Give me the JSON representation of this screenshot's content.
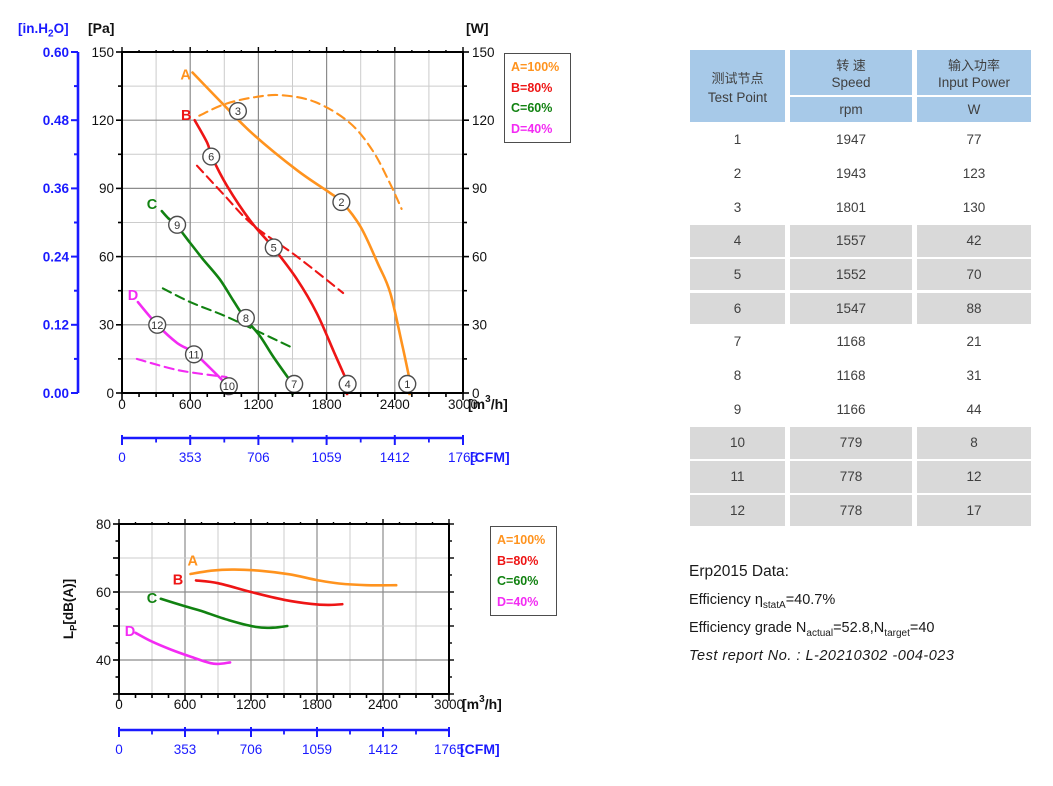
{
  "chart_data": [
    {
      "id": "performance",
      "type": "line",
      "title": "",
      "xlabel_parts": [
        "[m",
        "3",
        "/h]"
      ],
      "x_axis": {
        "min": 0,
        "max": 3000,
        "grid_step": 300,
        "tick_step": 150,
        "ticks": [
          "0",
          "600",
          "1200",
          "1800",
          "2400",
          "3000"
        ],
        "label_step": 600
      },
      "y_axis_pa": {
        "label": "[Pa]",
        "min": 0,
        "max": 150,
        "ticks": [
          "0",
          "30",
          "60",
          "90",
          "120",
          "150"
        ]
      },
      "y_axis_inh2o": {
        "label_parts": [
          "[in.H",
          "2",
          "O]"
        ],
        "ticks": [
          "0.00",
          "0.12",
          "0.24",
          "0.36",
          "0.48",
          "0.60"
        ]
      },
      "y_axis_w": {
        "label": "[W]",
        "min": 0,
        "max": 150,
        "ticks": [
          "0",
          "30",
          "60",
          "90",
          "120",
          "150"
        ]
      },
      "cfm_axis": {
        "label": "[CFM]",
        "min": 0,
        "max": 1765,
        "ticks": [
          "0",
          "353",
          "706",
          "1059",
          "1412",
          "1765"
        ]
      },
      "legend": [
        {
          "label": "A=100%",
          "color": "#ff931e"
        },
        {
          "label": "B=80%",
          "color": "#ee1515"
        },
        {
          "label": "C=60%",
          "color": "#118211"
        },
        {
          "label": "D=40%",
          "color": "#f32bf3"
        }
      ],
      "series": [
        {
          "name": "A",
          "kind": "pressure",
          "style": "solid",
          "color": "#ff931e",
          "label": {
            "text": "A",
            "x": 560,
            "y": 138
          },
          "points": [
            [
              620,
              141
            ],
            [
              890,
              127
            ],
            [
              1150,
              114
            ],
            [
              1540,
              98
            ],
            [
              1830,
              88
            ],
            [
              1935,
              84
            ],
            [
              2100,
              73
            ],
            [
              2250,
              57
            ],
            [
              2360,
              44
            ],
            [
              2470,
              20
            ],
            [
              2530,
              6
            ]
          ]
        },
        {
          "name": "A",
          "kind": "power",
          "style": "dashed",
          "color": "#ff931e",
          "points": [
            [
              680,
              122
            ],
            [
              900,
              127
            ],
            [
              1150,
              130
            ],
            [
              1400,
              131
            ],
            [
              1700,
              128
            ],
            [
              2000,
              119
            ],
            [
              2200,
              107
            ],
            [
              2350,
              93
            ],
            [
              2460,
              81
            ]
          ]
        },
        {
          "name": "B",
          "kind": "pressure",
          "style": "solid",
          "color": "#ee1515",
          "label": {
            "text": "B",
            "x": 565,
            "y": 120
          },
          "points": [
            [
              640,
              120
            ],
            [
              750,
              110
            ],
            [
              790,
              104
            ],
            [
              925,
              91
            ],
            [
              1125,
              76
            ],
            [
              1330,
              64
            ],
            [
              1540,
              50
            ],
            [
              1715,
              35
            ],
            [
              1865,
              18
            ],
            [
              1980,
              5
            ]
          ]
        },
        {
          "name": "B",
          "kind": "power",
          "style": "dashed",
          "color": "#ee1515",
          "points": [
            [
              660,
              100
            ],
            [
              900,
              87
            ],
            [
              1150,
              74
            ],
            [
              1540,
              60
            ],
            [
              1945,
              44
            ]
          ]
        },
        {
          "name": "C",
          "kind": "pressure",
          "style": "solid",
          "color": "#118211",
          "label": {
            "text": "C",
            "x": 264,
            "y": 81
          },
          "points": [
            [
              350,
              80
            ],
            [
              405,
              77
            ],
            [
              475,
              74
            ],
            [
              600,
              66
            ],
            [
              710,
              59
            ],
            [
              860,
              50
            ],
            [
              975,
              41
            ],
            [
              1080,
              33
            ],
            [
              1215,
              25
            ],
            [
              1330,
              16
            ],
            [
              1500,
              4
            ]
          ]
        },
        {
          "name": "C",
          "kind": "power",
          "style": "dashed",
          "color": "#118211",
          "points": [
            [
              360,
              46
            ],
            [
              600,
              40
            ],
            [
              900,
              34
            ],
            [
              1200,
              27
            ],
            [
              1495,
              20
            ]
          ]
        },
        {
          "name": "D",
          "kind": "pressure",
          "style": "solid",
          "color": "#f32bf3",
          "label": {
            "text": "D",
            "x": 97,
            "y": 41
          },
          "points": [
            [
              140,
              40
            ],
            [
              310,
              30
            ],
            [
              485,
              22
            ],
            [
              625,
              18
            ],
            [
              775,
              11
            ],
            [
              935,
              3
            ]
          ]
        },
        {
          "name": "D",
          "kind": "power",
          "style": "dashed",
          "color": "#f32bf3",
          "points": [
            [
              130,
              15
            ],
            [
              500,
              10
            ],
            [
              920,
              7
            ]
          ]
        }
      ],
      "test_point_markers": [
        {
          "label": "1",
          "x": 2510,
          "y": 4
        },
        {
          "label": "2",
          "x": 1930,
          "y": 84
        },
        {
          "label": "3",
          "x": 1020,
          "y": 124
        },
        {
          "label": "4",
          "x": 1985,
          "y": 4
        },
        {
          "label": "5",
          "x": 1335,
          "y": 64
        },
        {
          "label": "6",
          "x": 785,
          "y": 104
        },
        {
          "label": "7",
          "x": 1515,
          "y": 4
        },
        {
          "label": "8",
          "x": 1090,
          "y": 33
        },
        {
          "label": "9",
          "x": 485,
          "y": 74
        },
        {
          "label": "10",
          "x": 940,
          "y": 3
        },
        {
          "label": "11",
          "x": 633,
          "y": 17
        },
        {
          "label": "12",
          "x": 310,
          "y": 30
        }
      ]
    },
    {
      "id": "noise",
      "type": "line",
      "title": "",
      "xlabel_parts": [
        "[m",
        "3",
        "/h]"
      ],
      "x_axis": {
        "min": 0,
        "max": 3000,
        "grid_step": 300,
        "tick_step": 150,
        "ticks": [
          "0",
          "600",
          "1200",
          "1800",
          "2400",
          "3000"
        ],
        "label_step": 600
      },
      "y_axis": {
        "label_parts": [
          "L",
          "P",
          "[dB(A)]"
        ],
        "min": 30,
        "max": 80,
        "ticks": [
          "40",
          "60",
          "80"
        ],
        "tick_values": [
          40,
          60,
          80
        ]
      },
      "cfm_axis": {
        "label": "[CFM]",
        "min": 0,
        "max": 1765,
        "ticks": [
          "0",
          "353",
          "706",
          "1059",
          "1412",
          "1765"
        ]
      },
      "legend": [
        {
          "label": "A=100%",
          "color": "#ff931e"
        },
        {
          "label": "B=80%",
          "color": "#ee1515"
        },
        {
          "label": "C=60%",
          "color": "#118211"
        },
        {
          "label": "D=40%",
          "color": "#f32bf3"
        }
      ],
      "series": [
        {
          "name": "A",
          "kind": "noise",
          "style": "solid",
          "color": "#ff931e",
          "label": {
            "text": "A",
            "x": 670,
            "y": 67.8
          },
          "points": [
            [
              650,
              65.3
            ],
            [
              850,
              66.3
            ],
            [
              1050,
              66.6
            ],
            [
              1300,
              66.2
            ],
            [
              1550,
              65.2
            ],
            [
              1800,
              63.5
            ],
            [
              2000,
              62.5
            ],
            [
              2250,
              62
            ],
            [
              2520,
              62
            ]
          ]
        },
        {
          "name": "B",
          "kind": "noise",
          "style": "solid",
          "color": "#ee1515",
          "label": {
            "text": "B",
            "x": 536,
            "y": 62.2
          },
          "points": [
            [
              700,
              63.4
            ],
            [
              900,
              62.6
            ],
            [
              1200,
              60
            ],
            [
              1500,
              57.7
            ],
            [
              1750,
              56.5
            ],
            [
              1900,
              56.2
            ],
            [
              2030,
              56.4
            ]
          ]
        },
        {
          "name": "C",
          "kind": "noise",
          "style": "solid",
          "color": "#118211",
          "label": {
            "text": "C",
            "x": 300,
            "y": 56.8
          },
          "points": [
            [
              380,
              58
            ],
            [
              600,
              55.8
            ],
            [
              750,
              54.4
            ],
            [
              1000,
              51.7
            ],
            [
              1250,
              49.7
            ],
            [
              1400,
              49.5
            ],
            [
              1530,
              50
            ]
          ]
        },
        {
          "name": "D",
          "kind": "noise",
          "style": "solid",
          "color": "#f32bf3",
          "label": {
            "text": "D",
            "x": 100,
            "y": 47
          },
          "points": [
            [
              150,
              48
            ],
            [
              300,
              45.4
            ],
            [
              470,
              43.1
            ],
            [
              650,
              41
            ],
            [
              860,
              38.9
            ],
            [
              1010,
              39.3
            ]
          ]
        }
      ]
    }
  ],
  "table": {
    "header": {
      "test_point_zh": "测试节点",
      "test_point_en": "Test Point",
      "speed_zh": "转 速",
      "speed_en": "Speed",
      "speed_unit": "rpm",
      "power_zh": "输入功率",
      "power_en": "Input Power",
      "power_unit": "W"
    },
    "rows": [
      {
        "point": "1",
        "rpm": "1947",
        "power": "77"
      },
      {
        "point": "2",
        "rpm": "1943",
        "power": "123"
      },
      {
        "point": "3",
        "rpm": "1801",
        "power": "130"
      },
      {
        "point": "4",
        "rpm": "1557",
        "power": "42"
      },
      {
        "point": "5",
        "rpm": "1552",
        "power": "70"
      },
      {
        "point": "6",
        "rpm": "1547",
        "power": "88"
      },
      {
        "point": "7",
        "rpm": "1168",
        "power": "21"
      },
      {
        "point": "8",
        "rpm": "1168",
        "power": "31"
      },
      {
        "point": "9",
        "rpm": "1166",
        "power": "44"
      },
      {
        "point": "10",
        "rpm": "779",
        "power": "8"
      },
      {
        "point": "11",
        "rpm": "778",
        "power": "12"
      },
      {
        "point": "12",
        "rpm": "778",
        "power": "17"
      }
    ],
    "colors": {
      "header_bg": "#a7c9e8",
      "stripe_bg": "#d9d9d9",
      "text": "#3f3f3f"
    }
  },
  "erp": {
    "title": "Erp2015  Data:",
    "efficiency_prefix": "Efficiency η",
    "efficiency_sub": "statA",
    "efficiency_value": "=40.7%",
    "grade_prefix": "Efficiency grade N",
    "grade_sub1": "actual",
    "grade_mid": "=52.8,N",
    "grade_sub2": "target",
    "grade_value": "=40",
    "report": "Test report No.  : L-20210302 -004-023"
  },
  "ui_colors": {
    "axis_blue": "#1a1aff",
    "grid_dark": "#8c8c8c",
    "grid_light": "#cccccc"
  }
}
